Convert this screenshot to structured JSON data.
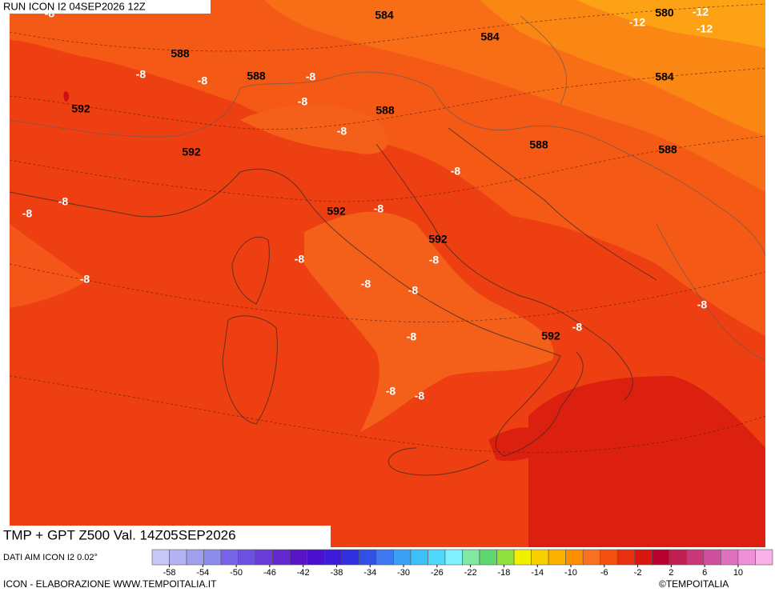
{
  "header": {
    "run": "RUN ICON I2 04SEP2026 12Z"
  },
  "footer": {
    "title": "TMP + GPT Z500 Val. 14Z05SEP2026",
    "source": "DATI AIM ICON I2 0.02°",
    "credit": "ICON - ELABORAZIONE WWW.TEMPOITALIA.IT",
    "brand": "©TEMPOITALIA"
  },
  "map": {
    "contour_labels": [
      584,
      580,
      -12,
      -12,
      -12,
      584,
      588,
      -8,
      -8,
      588,
      -8,
      -8,
      584,
      592,
      588,
      -8,
      588,
      588,
      592,
      -8,
      -8,
      -8,
      592,
      -8,
      592,
      -8,
      -8,
      -8,
      -8,
      -8,
      -8,
      592,
      -8,
      -8,
      -8,
      -8,
      -8
    ]
  },
  "colorbar": {
    "ticks": [
      -58,
      -54,
      -50,
      -46,
      -42,
      -38,
      -34,
      -30,
      -26,
      -22,
      -18,
      -14,
      -10,
      -6,
      -2,
      2,
      6,
      10
    ],
    "colors": [
      "#c8c8f8",
      "#b4b4f4",
      "#a0a0f0",
      "#8c8cec",
      "#7864e8",
      "#6c50e0",
      "#6a3cd8",
      "#6428d0",
      "#5a14c8",
      "#4a10d0",
      "#3c1cd8",
      "#3030e0",
      "#3050e8",
      "#3c78f0",
      "#3ca0f4",
      "#3cc0f8",
      "#50d8fc",
      "#80f0fc",
      "#80e8a0",
      "#60d870",
      "#90e040",
      "#f0f000",
      "#f8d000",
      "#fcb000",
      "#fc9000",
      "#f87020",
      "#f45010",
      "#e83010",
      "#d81810",
      "#b80030",
      "#c02050",
      "#c83878",
      "#d050a0",
      "#e070c0",
      "#f090d8",
      "#fab0e8"
    ]
  }
}
